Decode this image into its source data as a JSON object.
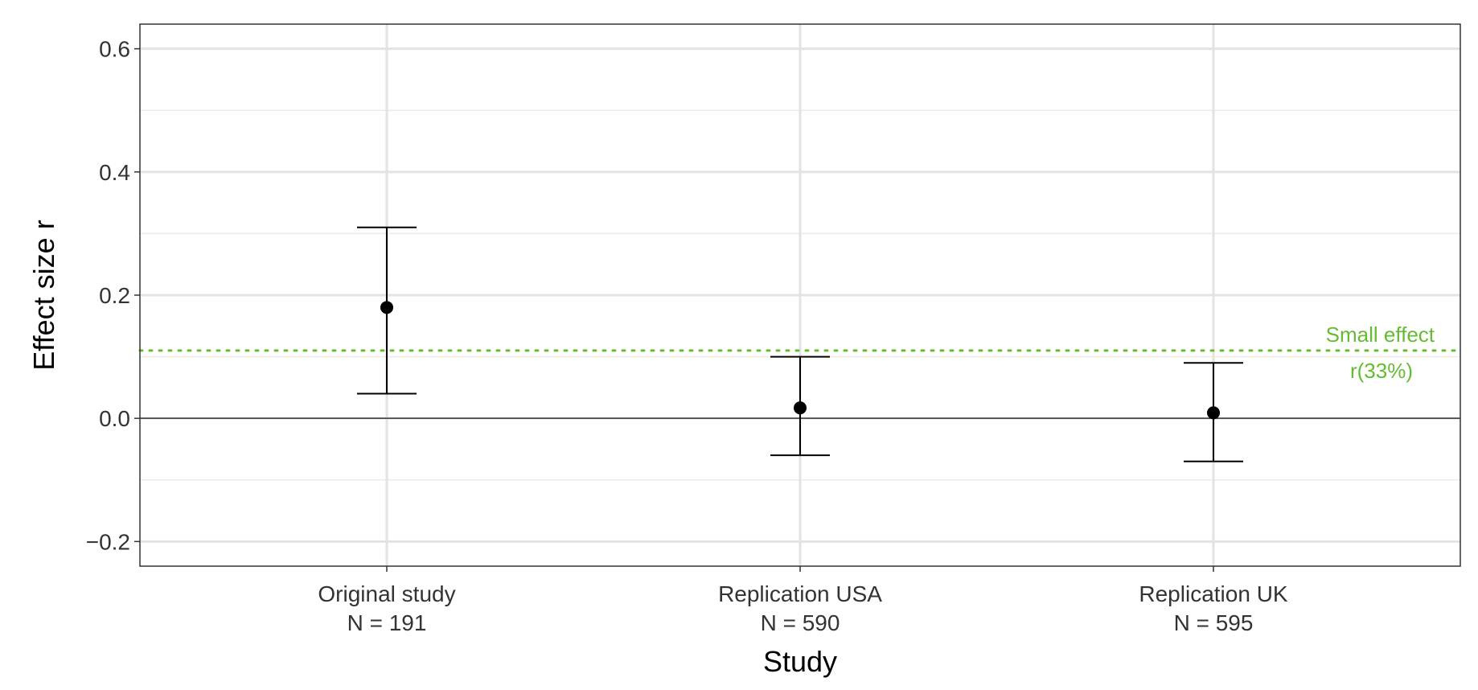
{
  "chart_data": {
    "type": "scatter",
    "subtype": "point-with-error-bars",
    "title": "",
    "xlabel": "Study",
    "ylabel": "Effect size r",
    "ylim": [
      -0.24,
      0.64
    ],
    "yticks": [
      -0.2,
      0.0,
      0.2,
      0.4,
      0.6
    ],
    "ytick_labels": [
      "−0.2",
      "0.0",
      "0.2",
      "0.4",
      "0.6"
    ],
    "grid": true,
    "categories": [
      {
        "name": "Original study",
        "n_label": "N = 191"
      },
      {
        "name": "Replication USA",
        "n_label": "N = 590"
      },
      {
        "name": "Replication UK",
        "n_label": "N = 595"
      }
    ],
    "points": [
      {
        "estimate": 0.18,
        "lower": 0.04,
        "upper": 0.31
      },
      {
        "estimate": 0.017,
        "lower": -0.06,
        "upper": 0.1
      },
      {
        "estimate": 0.009,
        "lower": -0.07,
        "upper": 0.09
      }
    ],
    "reference_lines": [
      {
        "value": 0.0,
        "style": "solid",
        "color": "#333333"
      },
      {
        "value": 0.11,
        "style": "dotted",
        "color": "#66bb33",
        "label_line1": "Small effect",
        "label_line2": "r(33%)"
      }
    ]
  }
}
